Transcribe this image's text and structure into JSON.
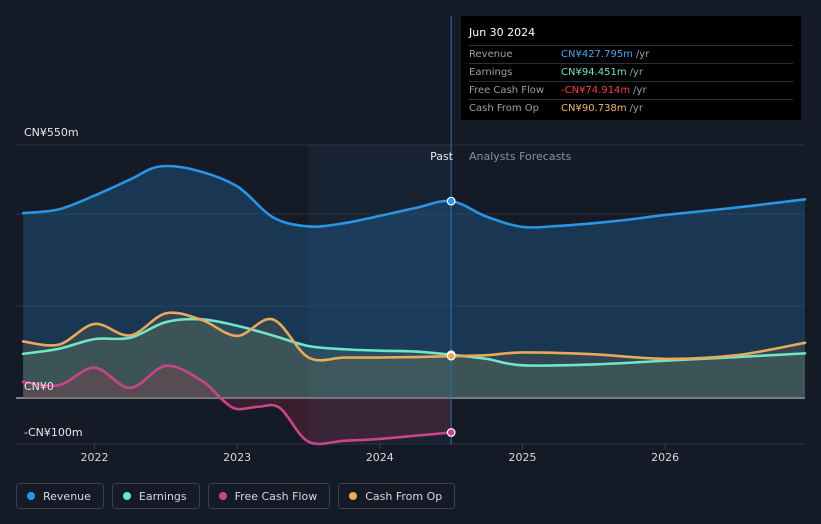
{
  "tooltip": {
    "date": "Jun 30 2024",
    "rows": [
      {
        "label": "Revenue",
        "value": "CN¥427.795m",
        "unit": "/yr",
        "color": "#4aa3ea"
      },
      {
        "label": "Earnings",
        "value": "CN¥94.451m",
        "unit": "/yr",
        "color": "#6ee6c8"
      },
      {
        "label": "Free Cash Flow",
        "value": "-CN¥74.914m",
        "unit": "/yr",
        "color": "#f2434d"
      },
      {
        "label": "Cash From Op",
        "value": "CN¥90.738m",
        "unit": "/yr",
        "color": "#f0b766"
      }
    ]
  },
  "legend": [
    {
      "label": "Revenue",
      "color": "#2b94e4"
    },
    {
      "label": "Earnings",
      "color": "#6ee6c8"
    },
    {
      "label": "Free Cash Flow",
      "color": "#c9458a"
    },
    {
      "label": "Cash From Op",
      "color": "#e8a95a"
    }
  ],
  "chart_data": {
    "type": "line",
    "y_axis_labels": {
      "top": "CN¥550m",
      "zero": "CN¥0",
      "bottom": "-CN¥100m"
    },
    "ylim": [
      -100,
      550
    ],
    "xlim": [
      2021.45,
      2026.98
    ],
    "x_ticks": [
      {
        "label": "2022",
        "value": 2022
      },
      {
        "label": "2023",
        "value": 2023
      },
      {
        "label": "2024",
        "value": 2024
      },
      {
        "label": "2025",
        "value": 2025
      },
      {
        "label": "2026",
        "value": 2026
      }
    ],
    "gridlines": [
      0,
      200,
      400,
      550
    ],
    "past_label": "Past",
    "forecast_label": "Analysts Forecasts",
    "past_shade_start": 2023.5,
    "divider": 2024.5,
    "series": [
      {
        "name": "Revenue",
        "color": "#2b94e4",
        "x": [
          2021.5,
          2021.75,
          2022.0,
          2022.25,
          2022.45,
          2022.7,
          2023.0,
          2023.25,
          2023.5,
          2023.75,
          2024.0,
          2024.25,
          2024.5,
          2024.75,
          2025.0,
          2025.25,
          2025.5,
          2025.75,
          2026.0,
          2026.5,
          2026.98
        ],
        "y": [
          402,
          410,
          440,
          475,
          503,
          496,
          460,
          393,
          373,
          380,
          396,
          413,
          428,
          394,
          372,
          374,
          380,
          388,
          398,
          414,
          432
        ]
      },
      {
        "name": "Earnings",
        "color": "#6ee6c8",
        "x": [
          2021.5,
          2021.75,
          2022.0,
          2022.25,
          2022.5,
          2022.75,
          2023.0,
          2023.25,
          2023.5,
          2023.75,
          2024.0,
          2024.25,
          2024.5,
          2024.75,
          2025.0,
          2025.5,
          2026.0,
          2026.5,
          2026.98
        ],
        "y": [
          96,
          107,
          128,
          131,
          165,
          171,
          157,
          136,
          113,
          106,
          103,
          101,
          94,
          85,
          71,
          73,
          81,
          89,
          97
        ]
      },
      {
        "name": "Free Cash Flow",
        "color": "#c9458a",
        "x": [
          2021.5,
          2021.75,
          2022.0,
          2022.25,
          2022.5,
          2022.75,
          2022.9,
          2023.0,
          2023.15,
          2023.3,
          2023.5,
          2023.75,
          2024.0,
          2024.25,
          2024.5
        ],
        "y": [
          35,
          28,
          66,
          22,
          70,
          38,
          -5,
          -24,
          -19,
          -22,
          -95,
          -93,
          -89,
          -82,
          -75
        ]
      },
      {
        "name": "Cash From Op",
        "color": "#e8a95a",
        "x": [
          2021.5,
          2021.75,
          2022.0,
          2022.25,
          2022.5,
          2022.75,
          2023.0,
          2023.25,
          2023.5,
          2023.75,
          2024.0,
          2024.25,
          2024.5,
          2024.75,
          2025.0,
          2025.5,
          2026.0,
          2026.5,
          2026.98
        ],
        "y": [
          123,
          116,
          161,
          136,
          184,
          170,
          135,
          171,
          88,
          88,
          88,
          89,
          91,
          93,
          99,
          95,
          85,
          93,
          120
        ]
      }
    ]
  }
}
